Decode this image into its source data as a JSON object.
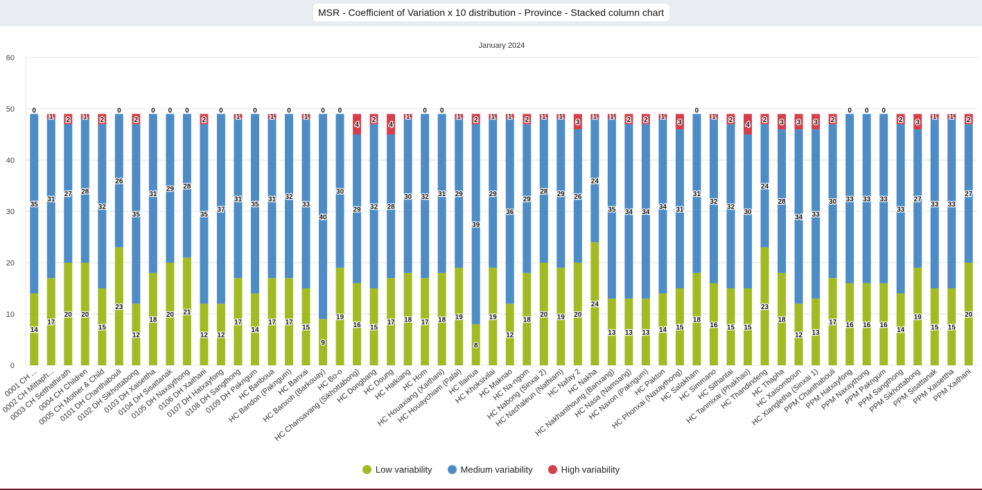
{
  "header": {
    "title": "MSR - Coefficient of Variation x 10 distribution - Province - Stacked column chart"
  },
  "chart_data": {
    "type": "bar",
    "stacked": true,
    "subtitle": "January 2024",
    "ylim": [
      0,
      60
    ],
    "yticks": [
      0,
      10,
      20,
      30,
      40,
      50,
      60
    ],
    "grid": true,
    "legend_position": "bottom",
    "categories": [
      "0001 CH ...",
      "0002 CH Mittaph...",
      "0003 CH Setthathirath",
      "0004 CH Children",
      "0005 CH Mother & Child",
      "0101 DH Chanthabouli",
      "0102 DH Sikhottabong",
      "0103 DH Xaisettha",
      "0104 DH Sisattanak",
      "0105 DH Naxaythong",
      "0106 DH Xaithani",
      "0107 DH Hatxayfong",
      "0108 DH Sangthong",
      "0109 DH Pakngum",
      "HC Banboua",
      "HC Bandon (Pakngum)",
      "HC Banxai",
      "HC Banxoh (Barkouay)",
      "HC Bo-o",
      "HC Chansavang (Sikhottabong)",
      "HC Dongbang",
      "HC Doung",
      "HC Hatkiang",
      "HC Hom",
      "HC Houaxiang (Xaithani)",
      "HC Houaychiam (Palai)",
      "HC Ilainua",
      "HC Khoksivilai",
      "HC Maknao",
      "HC Na-ngom",
      "HC Nabong (Sinxai 2)",
      "HC Nachaleun (Nathiam)",
      "HC Nafay 2",
      "HC Nakha",
      "HC Nakhanthoung (Banxang)",
      "HC Nasa (Namsang)",
      "HC Naxon (Pakngum)",
      "HC Pakton",
      "HC Phonxai (Naxaythong)",
      "HC Salakham",
      "HC Simmano",
      "HC Sithantai",
      "HC Tanmixai (Phakhao)",
      "HC Thandindeng",
      "HC Thapha",
      "HC Xaisomboun",
      "HC Xiangletha (Sinxai 1)",
      "PPM Chanthabouli",
      "PPM Hatxayfong",
      "PPM Naxaythong",
      "PPM Pakngum",
      "PPM Sangthong",
      "PPM Sikhottabong",
      "PPM Sisattanak",
      "PPM Xaisettha",
      "PPM Xaithani"
    ],
    "series": [
      {
        "name": "Low variability",
        "color": "#a2bb24",
        "values": [
          14,
          17,
          20,
          20,
          15,
          23,
          12,
          18,
          20,
          21,
          12,
          12,
          17,
          14,
          17,
          17,
          15,
          9,
          19,
          16,
          15,
          17,
          18,
          17,
          18,
          19,
          8,
          19,
          12,
          18,
          20,
          19,
          20,
          24,
          13,
          13,
          13,
          14,
          15,
          18,
          16,
          15,
          15,
          23,
          18,
          12,
          13,
          17,
          16,
          16,
          16,
          14,
          19,
          15,
          15,
          20
        ]
      },
      {
        "name": "Medium variability",
        "color": "#4e8cc6",
        "values": [
          35,
          31,
          27,
          28,
          32,
          26,
          35,
          31,
          29,
          28,
          35,
          37,
          31,
          35,
          31,
          32,
          33,
          40,
          30,
          29,
          32,
          28,
          30,
          32,
          31,
          29,
          39,
          29,
          36,
          29,
          28,
          29,
          26,
          24,
          35,
          34,
          34,
          34,
          31,
          31,
          32,
          32,
          30,
          24,
          28,
          34,
          33,
          30,
          33,
          33,
          33,
          33,
          27,
          33,
          33,
          27
        ]
      },
      {
        "name": "High variability",
        "color": "#d63e4c",
        "values": [
          0,
          1,
          2,
          1,
          2,
          0,
          2,
          0,
          0,
          0,
          2,
          0,
          1,
          0,
          1,
          0,
          1,
          0,
          0,
          4,
          2,
          4,
          1,
          0,
          0,
          1,
          2,
          1,
          1,
          2,
          1,
          1,
          3,
          1,
          1,
          2,
          2,
          1,
          3,
          0,
          1,
          2,
          4,
          2,
          3,
          3,
          3,
          2,
          0,
          0,
          0,
          2,
          3,
          1,
          1,
          2
        ]
      }
    ]
  }
}
